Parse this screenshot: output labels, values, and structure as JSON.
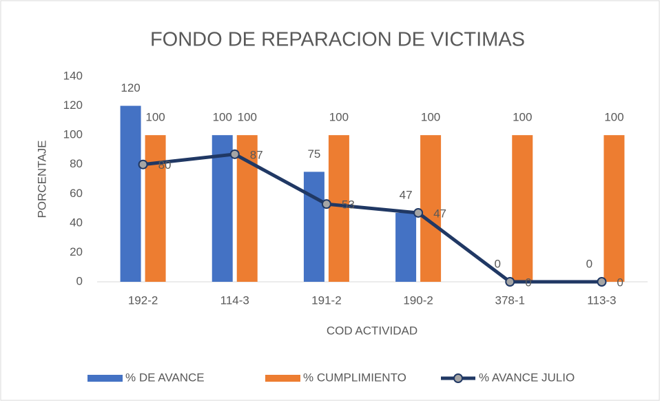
{
  "chart_data": {
    "type": "bar",
    "title": "FONDO DE REPARACION DE VICTIMAS",
    "x_label": "COD ACTIVIDAD",
    "y_label": "PORCENTAJE",
    "categories": [
      "192-2",
      "114-3",
      "191-2",
      "190-2",
      "378-1",
      "113-3"
    ],
    "series": [
      {
        "name": "% DE AVANCE",
        "type": "bar",
        "color": "#4472c4",
        "values": [
          120,
          100,
          75,
          47,
          0,
          0
        ]
      },
      {
        "name": "% CUMPLIMIENTO",
        "type": "bar",
        "color": "#ed7d31",
        "values": [
          100,
          100,
          100,
          100,
          100,
          100
        ]
      },
      {
        "name": "% AVANCE JULIO",
        "type": "line",
        "color": "#203864",
        "marker_color": "#a5a5a5",
        "values": [
          80,
          87,
          53,
          47,
          0,
          0
        ]
      }
    ],
    "ylim": [
      0,
      140
    ],
    "yticks": [
      0,
      20,
      40,
      60,
      80,
      100,
      120,
      140
    ],
    "grid": false,
    "legend": "bottom"
  }
}
